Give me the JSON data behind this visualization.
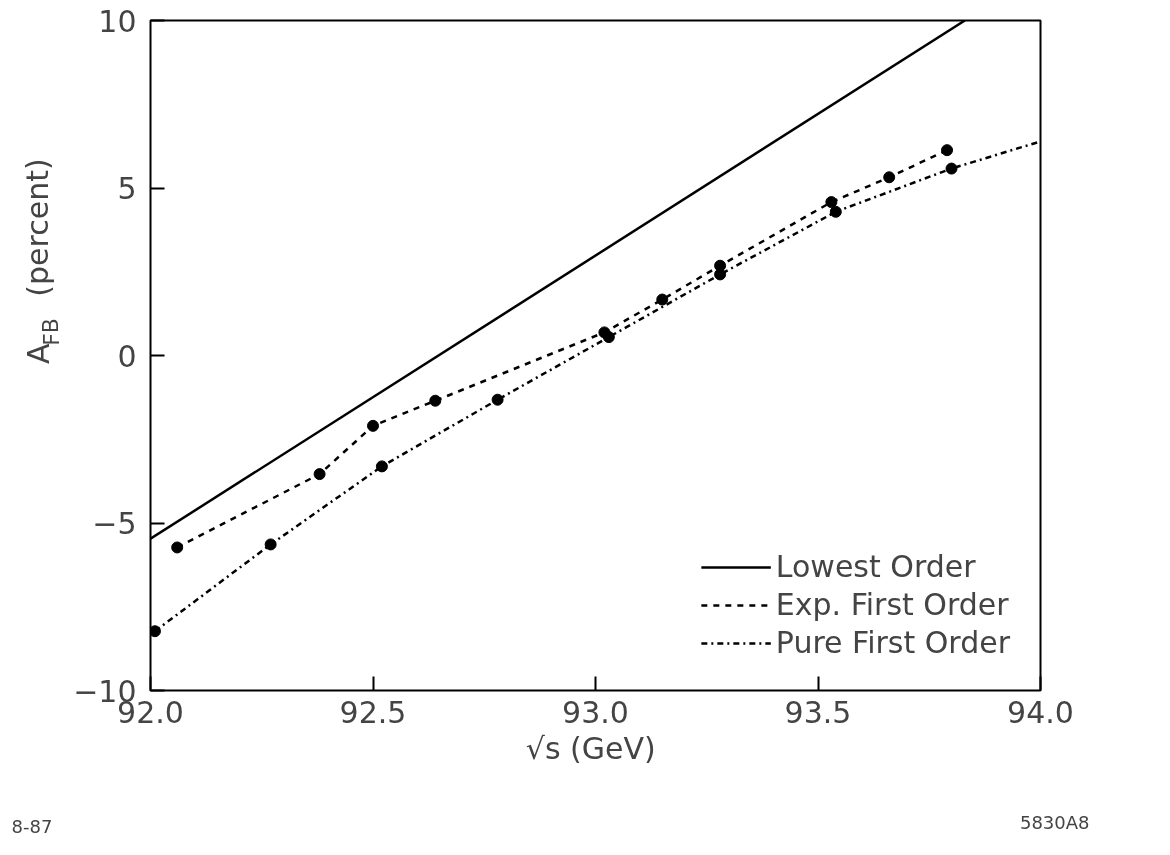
{
  "chart_data": {
    "type": "line",
    "xlabel": "√s  (GeV)",
    "ylabel": "A$_{FB}$  (percent)",
    "xlim": [
      92.0,
      94.0
    ],
    "ylim": [
      -10,
      10
    ],
    "xticks": [
      {
        "value": 92.0,
        "label": "92.0"
      },
      {
        "value": 92.5,
        "label": "92.5"
      },
      {
        "value": 93.0,
        "label": "93.0"
      },
      {
        "value": 93.5,
        "label": "93.5"
      },
      {
        "value": 94.0,
        "label": "94.0"
      }
    ],
    "yticks": [
      -10,
      -5,
      0,
      5,
      10
    ],
    "grid": false,
    "legend": "bottom right",
    "annotations": [
      "8-87",
      "5830A8"
    ],
    "series": [
      {
        "name": "Lowest Order",
        "type": "line",
        "line_style": "solid",
        "color": "#000000",
        "x": [
          92.0,
          93.83
        ],
        "values": [
          -5.47,
          10
        ]
      },
      {
        "name": "Exp. First Order",
        "type": "line",
        "line_style": "dashed",
        "color": "#000000",
        "x": [
          92.06,
          92.38,
          92.5,
          92.64,
          93.02,
          93.15,
          93.28,
          93.53,
          93.66,
          93.79
        ],
        "values": [
          -5.73,
          -3.54,
          -2.1,
          -1.35,
          0.69,
          1.67,
          2.68,
          4.58,
          5.32,
          6.13
        ]
      },
      {
        "name": "Pure First Order",
        "type": "line",
        "line_style": "dashdot",
        "color": "#000000",
        "x": [
          92.01,
          92.27,
          92.52,
          92.78,
          93.03,
          93.28,
          93.54,
          93.8,
          94.0
        ],
        "values": [
          -8.23,
          -5.64,
          -3.31,
          -1.32,
          0.55,
          2.42,
          4.29,
          5.58,
          6.39
        ]
      },
      {
        "type": "scatter",
        "marker": "circle",
        "color": "#000000",
        "x": [
          92.06,
          92.38,
          92.5,
          92.64,
          93.02,
          93.15,
          93.28,
          93.53,
          93.66,
          93.79
        ],
        "values": [
          -5.73,
          -3.54,
          -2.1,
          -1.35,
          0.69,
          1.67,
          2.68,
          4.58,
          5.32,
          6.13
        ]
      },
      {
        "type": "scatter",
        "marker": "circle",
        "color": "#000000",
        "x": [
          92.01,
          92.27,
          92.52,
          92.78,
          93.03,
          93.28,
          93.54,
          93.8
        ],
        "values": [
          -8.23,
          -5.64,
          -3.31,
          -1.32,
          0.55,
          2.42,
          4.29,
          5.58
        ]
      }
    ]
  }
}
